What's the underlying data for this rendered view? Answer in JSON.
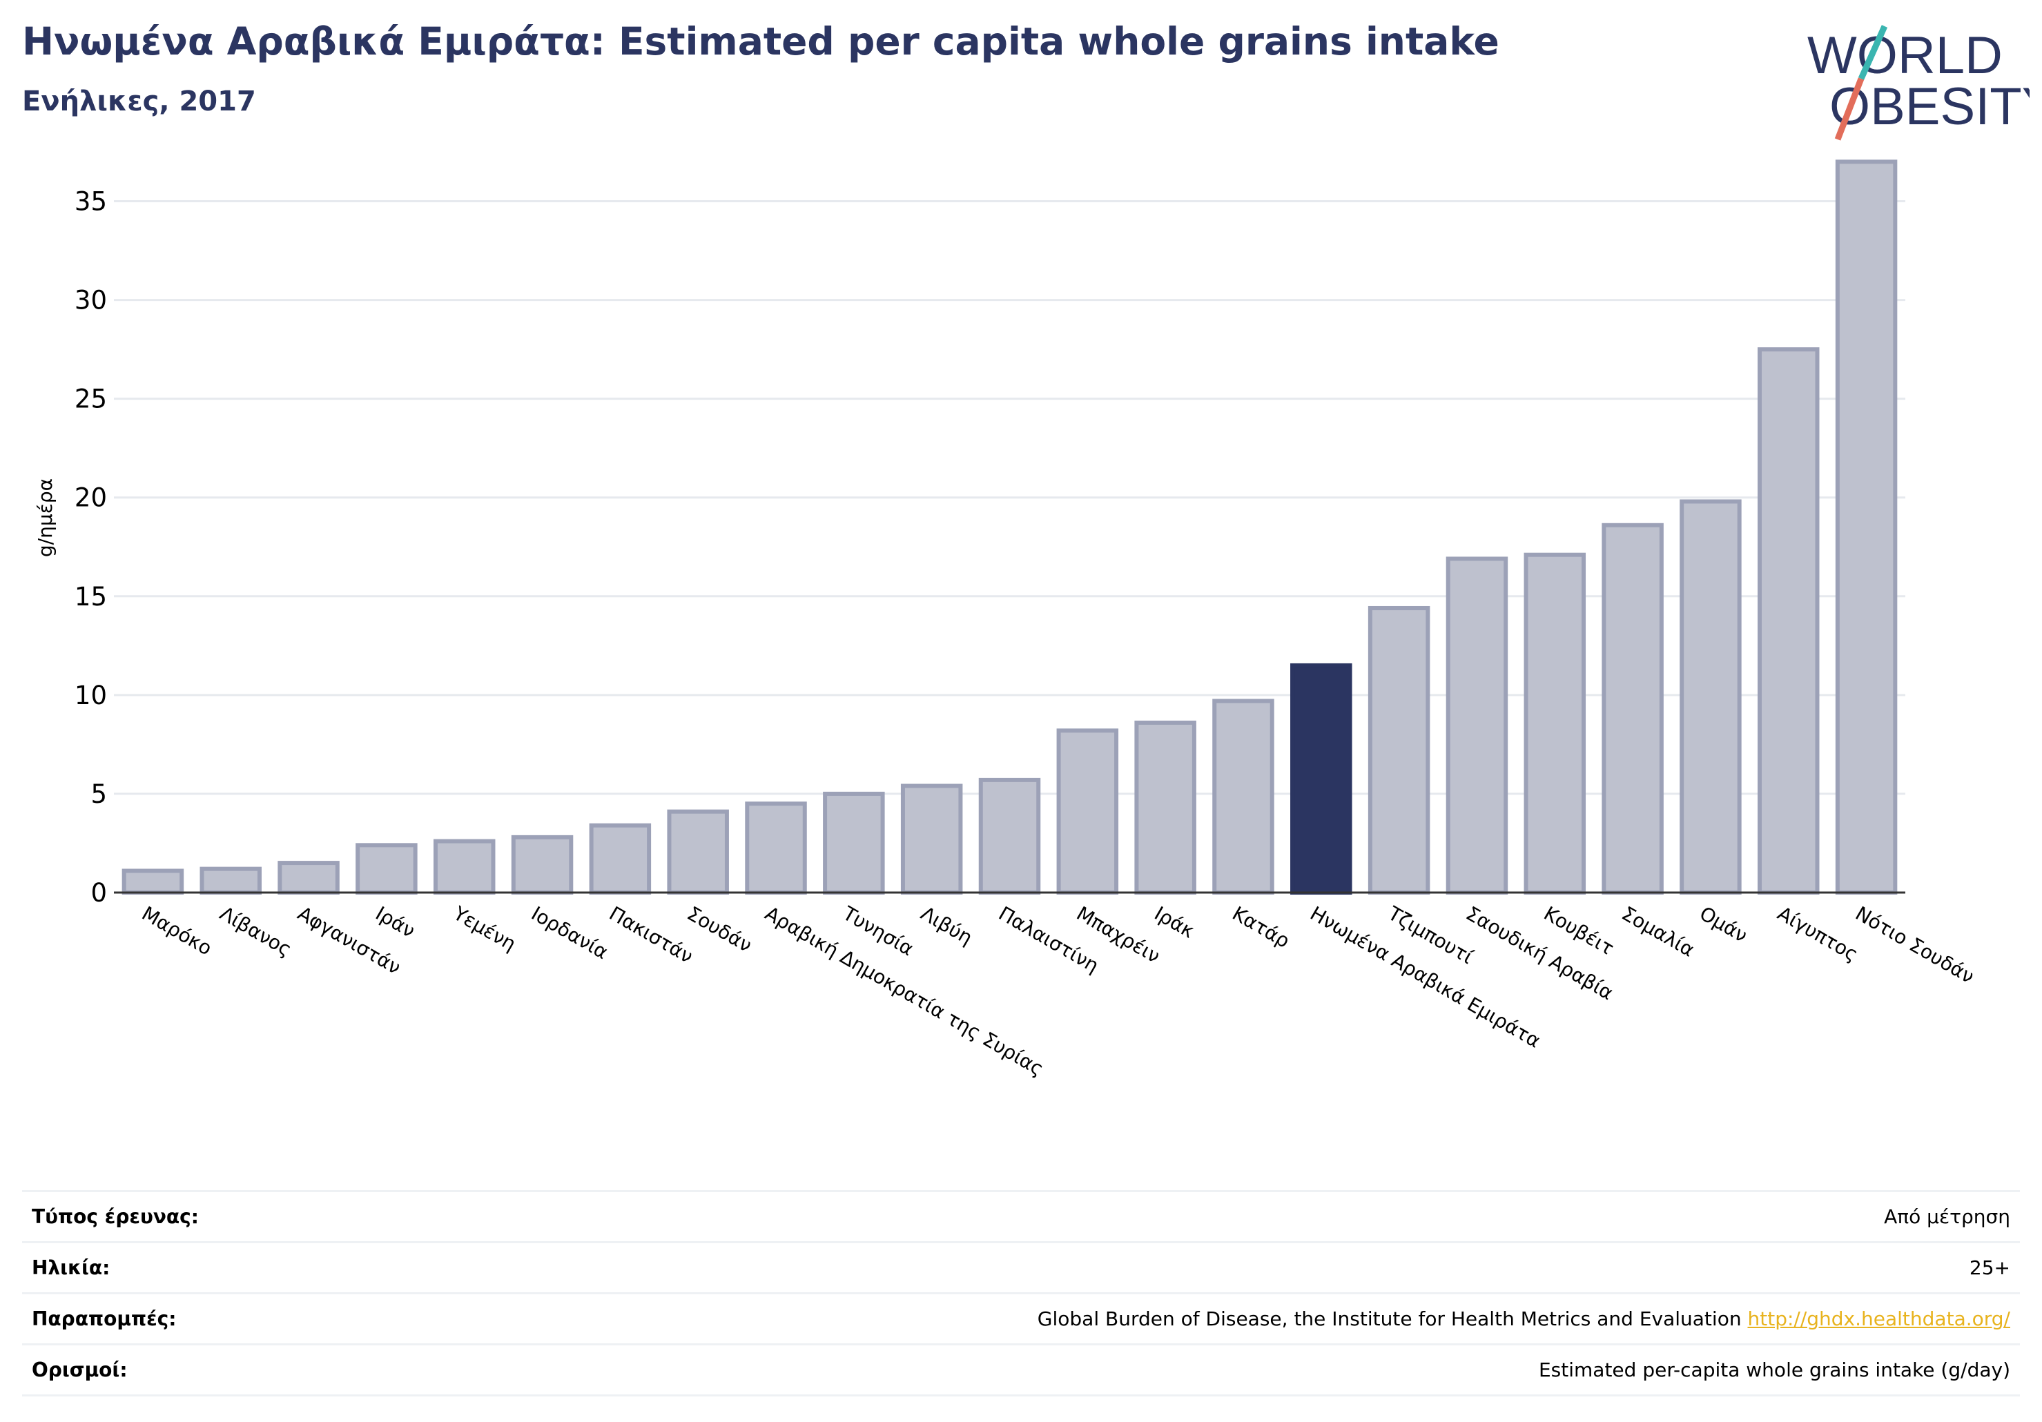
{
  "header": {
    "title": "Ηνωμένα Αραβικά Εμιράτα: Estimated per capita whole grains intake",
    "subtitle": "Ενήλικες, 2017"
  },
  "logo": {
    "line1": "WORLD",
    "line2": "OBESITY",
    "colors": {
      "text": "#2b3561",
      "slash_top": "#3ab5b0",
      "slash_bottom": "#e26d5a"
    }
  },
  "chart_data": {
    "type": "bar",
    "ylabel": "g/ημέρα",
    "ylim": [
      0,
      37.5
    ],
    "yticks": [
      0,
      5,
      10,
      15,
      20,
      25,
      30,
      35
    ],
    "grid": true,
    "highlight": "Ηνωμένα Αραβικά Εμιράτα",
    "colors": {
      "bar": "#bec1ce",
      "bar_edge": "#9ca1b7",
      "highlight": "#2b3561",
      "grid": "#e6e9ee",
      "axis": "#333333"
    },
    "categories": [
      "Μαρόκο",
      "Λίβανος",
      "Αφγανιστάν",
      "Ιράν",
      "Υεμένη",
      "Ιορδανία",
      "Πακιστάν",
      "Σουδάν",
      "Αραβική Δημοκρατία της Συρίας",
      "Τυνησία",
      "Λιβύη",
      "Παλαιστίνη",
      "Μπαχρέιν",
      "Ιράκ",
      "Κατάρ",
      "Ηνωμένα Αραβικά Εμιράτα",
      "Τζιμπουτί",
      "Σαουδική Αραβία",
      "Κουβέιτ",
      "Σομαλία",
      "Ομάν",
      "Αίγυπτος",
      "Νότιο Σουδάν"
    ],
    "values": [
      1.1,
      1.2,
      1.5,
      2.4,
      2.6,
      2.8,
      3.4,
      4.1,
      4.5,
      5.0,
      5.4,
      5.7,
      8.2,
      8.6,
      9.7,
      11.5,
      14.4,
      16.9,
      17.1,
      18.6,
      19.8,
      27.5,
      37.0
    ]
  },
  "meta": [
    {
      "label": "Τύπος έρευνας:",
      "value": "Από μέτρηση"
    },
    {
      "label": "Ηλικία:",
      "value": "25+"
    },
    {
      "label": "Παραπομπές:",
      "value": "Global Burden of Disease, the Institute for Health Metrics and Evaluation",
      "link": "http://ghdx.healthdata.org/"
    },
    {
      "label": "Ορισμοί:",
      "value": "Estimated per-capita whole grains intake (g/day)"
    }
  ]
}
